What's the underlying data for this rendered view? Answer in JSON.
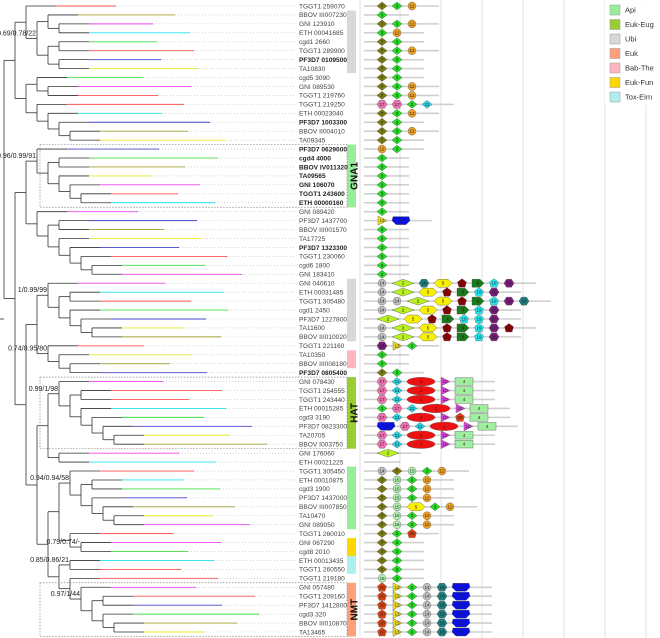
{
  "legend": [
    {
      "label": "Api",
      "color": "#98ee98"
    },
    {
      "label": "Euk-Eug",
      "color": "#9acd32"
    },
    {
      "label": "Ubi",
      "color": "#d8d8d8"
    },
    {
      "label": "Euk",
      "color": "#ffa07a"
    },
    {
      "label": "Bab-The",
      "color": "#ffb6c1"
    },
    {
      "label": "Euk-Fun",
      "color": "#ffd700"
    },
    {
      "label": "Tox-Eim",
      "color": "#aeeeee"
    }
  ],
  "species_colors": {
    "TGGT1": "#ff5050",
    "BBOV": "#a0a030",
    "GNI": "#ee44ee",
    "ETH": "#22e0f0",
    "cgd": "#44dd44",
    "PF3D7": "#4444cc",
    "TA": "#e8e820"
  },
  "domain_styles": {
    "1": {
      "shape": "ellipse",
      "color": "#ee1111"
    },
    "2": {
      "shape": "widediamond",
      "color": "#b8f020"
    },
    "3": {
      "shape": "diamond",
      "color": "#22dd22"
    },
    "4": {
      "shape": "rect",
      "color": "#a0eea0"
    },
    "5": {
      "shape": "widehex",
      "color": "#f8f000"
    },
    "6": {
      "shape": "arrow",
      "color": "#1a7a1a"
    },
    "7": {
      "shape": "diamond",
      "color": "#7a7a10"
    },
    "8": {
      "shape": "pentagon",
      "color": "#8b0000"
    },
    "9": {
      "shape": "widepentagon",
      "color": "#0a10e0"
    },
    "10": {
      "shape": "triangle",
      "color": "#e040e0"
    },
    "11": {
      "shape": "diamond",
      "color": "#22d8e8"
    },
    "12": {
      "shape": "circle",
      "color": "#f0a020"
    },
    "13": {
      "shape": "triangle",
      "color": "#f0e020"
    },
    "14": {
      "shape": "circle",
      "color": "#c0c0c0"
    },
    "15": {
      "shape": "circle",
      "color": "#b0f0b0"
    },
    "16": {
      "shape": "hexagon",
      "color": "#7a1a7a"
    },
    "17": {
      "shape": "hexagon",
      "color": "#ee70b0"
    },
    "18": {
      "shape": "hexagon",
      "color": "#1a8080"
    },
    "19": {
      "shape": "pentagon",
      "color": "#20e8f0"
    },
    "20": {
      "shape": "pentagon",
      "color": "#e04010"
    }
  },
  "rows": [
    {
      "name": "TGGT1 259070",
      "domains": [
        "7",
        "3",
        "12"
      ]
    },
    {
      "name": "BBOV III007230",
      "domains": [
        "3"
      ]
    },
    {
      "name": "GNI 123910",
      "domains": [
        "7",
        "3",
        "12"
      ]
    },
    {
      "name": "ETH 00041685",
      "domains": [
        "3",
        "12"
      ]
    },
    {
      "name": "cgd1 2660",
      "domains": [
        "7",
        "3"
      ]
    },
    {
      "name": "TGGT1 289900",
      "domains": [
        "7",
        "3",
        "12"
      ]
    },
    {
      "name": "PF3D7 0109500",
      "bold": true,
      "domains": [
        "7",
        "3"
      ]
    },
    {
      "name": "TA10830",
      "domains": [
        "7",
        "3"
      ]
    },
    {
      "name": "cgd5 3090",
      "domains": [
        "7",
        "3"
      ]
    },
    {
      "name": "GNI 089530",
      "domains": [
        "7",
        "3",
        "12"
      ]
    },
    {
      "name": "TGGT1 219760",
      "domains": [
        "7",
        "3",
        "12"
      ]
    },
    {
      "name": "TGGT1 219250",
      "domains": [
        "17",
        "17",
        "3",
        "11"
      ]
    },
    {
      "name": "ETH 00023040",
      "domains": [
        "7",
        "3",
        "12"
      ]
    },
    {
      "name": "PF3D7 1003300",
      "bold": true,
      "domains": [
        "7",
        "3"
      ]
    },
    {
      "name": "BBOV II004010",
      "domains": [
        "7",
        "3",
        "12"
      ]
    },
    {
      "name": "TA09345",
      "domains": [
        "7",
        "3"
      ]
    },
    {
      "name": "PF3D7 0629000",
      "bold": true,
      "domains": [
        "12",
        "3"
      ]
    },
    {
      "name": "cgd4 4000",
      "bold": true,
      "domains": [
        "3"
      ]
    },
    {
      "name": "BBOV IV011320",
      "bold": true,
      "domains": [
        "3"
      ]
    },
    {
      "name": "TA09565",
      "bold": true,
      "domains": [
        "3"
      ]
    },
    {
      "name": "GNI 106070",
      "bold": true,
      "domains": [
        "3"
      ]
    },
    {
      "name": "TGGT1 243600",
      "bold": true,
      "domains": [
        "3"
      ]
    },
    {
      "name": "ETH 00000160",
      "bold": true,
      "domains": [
        "3"
      ]
    },
    {
      "name": "GNI 089420",
      "domains": [
        "3"
      ]
    },
    {
      "name": "PF3D7 1437700",
      "domains": [
        "13",
        "9"
      ]
    },
    {
      "name": "BBOV III001570",
      "domains": [
        "3"
      ]
    },
    {
      "name": "TA17725",
      "domains": [
        "3"
      ]
    },
    {
      "name": "PF3D7 1323300",
      "bold": true,
      "domains": [
        "3"
      ]
    },
    {
      "name": "TGGT1 230060",
      "domains": [
        "3"
      ]
    },
    {
      "name": "cgd6 1800",
      "domains": [
        "3"
      ]
    },
    {
      "name": "GNI 183410",
      "domains": [
        "3"
      ]
    },
    {
      "name": "GNI 040610",
      "domains": [
        "14",
        "2",
        "18",
        "5",
        "8",
        "6",
        "19",
        "16"
      ]
    },
    {
      "name": "ETH 00031485",
      "domains": [
        "14",
        "2",
        "5",
        "8",
        "6",
        "19",
        "16"
      ]
    },
    {
      "name": "TGGT1 305480",
      "domains": [
        "14",
        "14",
        "2",
        "5",
        "8",
        "6",
        "19",
        "16",
        "18"
      ]
    },
    {
      "name": "cgd1 2450",
      "domains": [
        "14",
        "2",
        "5",
        "8",
        "6",
        "19",
        "16"
      ]
    },
    {
      "name": "PF3D7 1227800",
      "domains": [
        "2",
        "5",
        "8",
        "6",
        "19",
        "19",
        "16"
      ]
    },
    {
      "name": "TA11600",
      "domains": [
        "14",
        "2",
        "5",
        "8",
        "6",
        "19",
        "16",
        "8"
      ]
    },
    {
      "name": "BBOV III010020",
      "domains": [
        "14",
        "2",
        "5",
        "8",
        "6",
        "19",
        "16"
      ]
    },
    {
      "name": "TGGT1 221160",
      "domains": [
        "16",
        "13",
        "3"
      ]
    },
    {
      "name": "TA10350",
      "domains": [
        "3"
      ]
    },
    {
      "name": "BBOV III008180",
      "domains": [
        "3"
      ]
    },
    {
      "name": "PF3D7 0805400",
      "bold": true,
      "domains": [
        "7",
        "3"
      ]
    },
    {
      "name": "GNI 078430",
      "domains": [
        "17",
        "11",
        "1",
        "10",
        "4"
      ]
    },
    {
      "name": "TGGT1 254555",
      "domains": [
        "17",
        "11",
        "1",
        "10",
        "4"
      ]
    },
    {
      "name": "TGGT1 243440",
      "domains": [
        "17",
        "11",
        "1",
        "10",
        "4"
      ]
    },
    {
      "name": "ETH 00015285",
      "domains": [
        "3",
        "17",
        "11",
        "1",
        "10",
        "4"
      ]
    },
    {
      "name": "cgd3 3190",
      "domains": [
        "17",
        "11",
        "1",
        "10",
        "20",
        "4"
      ]
    },
    {
      "name": "PF3D7 0823300",
      "domains": [
        "9",
        "17",
        "11",
        "1",
        "10",
        "4"
      ]
    },
    {
      "name": "TA20705",
      "domains": [
        "17",
        "11",
        "1",
        "10",
        "4"
      ]
    },
    {
      "name": "BBOV I003750",
      "domains": [
        "17",
        "11",
        "1",
        "10",
        "4"
      ]
    },
    {
      "name": "GNI 176060",
      "domains": [
        "2"
      ]
    },
    {
      "name": "ETH 00021225",
      "domains": []
    },
    {
      "name": "TGGT1 305450",
      "domains": [
        "14",
        "7",
        "15",
        "3",
        "12"
      ]
    },
    {
      "name": "ETH 00010875",
      "domains": [
        "7",
        "15",
        "3",
        "12"
      ]
    },
    {
      "name": "cgd3 1900",
      "domains": [
        "7",
        "15",
        "3",
        "12"
      ]
    },
    {
      "name": "PF3D7 1437000",
      "domains": [
        "7",
        "15",
        "3",
        "12"
      ]
    },
    {
      "name": "BBOV III007850",
      "domains": [
        "7",
        "15",
        "5",
        "3",
        "12"
      ]
    },
    {
      "name": "TA10470",
      "domains": [
        "7",
        "15",
        "3",
        "12"
      ]
    },
    {
      "name": "GNI 089050",
      "domains": [
        "7",
        "15",
        "3",
        "12"
      ]
    },
    {
      "name": "TGGT1 260010",
      "domains": [
        "7",
        "3",
        "20"
      ]
    },
    {
      "name": "GNI 067290",
      "domains": [
        "7",
        "3"
      ]
    },
    {
      "name": "cgd8 2010",
      "domains": [
        "7",
        "3"
      ]
    },
    {
      "name": "ETH 00013435",
      "domains": [
        "7",
        "3"
      ]
    },
    {
      "name": "TGGT1 260550",
      "domains": [
        "7",
        "3"
      ]
    },
    {
      "name": "TGGT1 219180",
      "domains": [
        "15",
        "3"
      ]
    },
    {
      "name": "GNI 057480",
      "domains": [
        "20",
        "13",
        "3",
        "14",
        "18",
        "9"
      ]
    },
    {
      "name": "TGGT1 209160",
      "domains": [
        "20",
        "13",
        "3",
        "14",
        "18",
        "9"
      ]
    },
    {
      "name": "PF3D7 1412800",
      "domains": [
        "20",
        "13",
        "3",
        "14",
        "18",
        "9"
      ]
    },
    {
      "name": "cgd3 320",
      "domains": [
        "20",
        "13",
        "3",
        "14",
        "18",
        "9"
      ]
    },
    {
      "name": "BBOV III010870",
      "domains": [
        "20",
        "13",
        "3",
        "14",
        "18",
        "9"
      ]
    },
    {
      "name": "TA13465",
      "domains": [
        "20",
        "13",
        "3",
        "14",
        "18",
        "9"
      ]
    }
  ],
  "groups": [
    {
      "label": "",
      "from": 1,
      "to": 7,
      "color": "#d8d8d8"
    },
    {
      "label": "GNA1",
      "from": 16,
      "to": 22,
      "color": "#98ee98",
      "boxed": true
    },
    {
      "label": "",
      "from": 31,
      "to": 37,
      "color": "#d8d8d8"
    },
    {
      "label": "",
      "from": 39,
      "to": 40,
      "color": "#ffb6c1"
    },
    {
      "label": "HAT",
      "from": 42,
      "to": 49,
      "color": "#9acd32",
      "boxed": true
    },
    {
      "label": "",
      "from": 52,
      "to": 58,
      "color": "#98ee98"
    },
    {
      "label": "",
      "from": 60,
      "to": 61,
      "color": "#ffd700"
    },
    {
      "label": "",
      "from": 62,
      "to": 63,
      "color": "#aeeeee"
    },
    {
      "label": "NMT",
      "from": 65,
      "to": 70,
      "color": "#ffa07a",
      "boxed": true
    }
  ],
  "tree": [
    [
      [
        0,
        {
          "s": "0.69/0.78/22",
          "c": [
            [
              1,
              [
                2,
                3
              ]
            ],
            [
              [
                4,
                5
              ],
              [
                6,
                7
              ]
            ]
          ]
        }
      ],
      [
        [
          8,
          [
            9,
            10
          ]
        ],
        [
          11,
          [
            12,
            [
              13,
              [
                14,
                15
              ]
            ]
          ]
        ]
      ]
    ],
    [
      [
        {
          "s": "0.96/0.99/91",
          "c": [
            16,
            [
              [
                17,
                18
              ],
              [
                19,
                [
                  20,
                  [
                    21,
                    22
                  ]
                ]
              ]
            ]
          ]
        },
        [
          23,
          [
            [
              24,
              25
            ],
            [
              26,
              [
                27,
                [
                  28,
                  [
                    29,
                    30
                  ]
                ]
              ]
            ]
          ]
        ]
      ],
      [
        [
          {
            "s": "1/0.99/99",
            "c": [
              31,
              [
                [
                  32,
                  33
                ],
                [
                  34,
                  [
                    35,
                    [
                      36,
                      37
                    ]
                  ]
                ]
              ]
            ]
          },
          {
            "s": "0.74/0.95/80",
            "c": [
              38,
              [
                39,
                [
                  40,
                  41
                ]
              ]
            ]
          }
        ],
        [
          [
            {
              "s": "0.99/1/98",
              "c": [
                42,
                [
                  [
                    43,
                    44
                  ],
                  [
                    45,
                    [
                      46,
                      [
                        47,
                        [
                          48,
                          49
                        ]
                      ]
                    ]
                  ]
                ]
              ]
            },
            [
              50,
              51
            ]
          ],
          [
            [
              {
                "s": "0.94/0.94/58",
                "c": [
                  52,
                  [
                    [
                      53,
                      54
                    ],
                    [
                      55,
                      [
                        56,
                        [
                          57,
                          58
                        ]
                      ]
                    ]
                  ]
                ]
              },
              [
                59,
                {
                  "s": "0.79/0.74/-",
                  "c": [
                    60,
                    61
                  ]
                }
              ]
            ],
            [
              {
                "s": "0.85/0.86/21",
                "c": [
                  62,
                  63
                ]
              },
              [
                64,
                {
                  "s": "0.97/1/44",
                  "c": [
                    65,
                    [
                      [
                        66,
                        67
                      ],
                      [
                        68,
                        [
                          69,
                          70
                        ]
                      ]
                    ]
                  ]
                }
              ]
            ]
          ]
        ]
      ]
    ]
  ]
}
